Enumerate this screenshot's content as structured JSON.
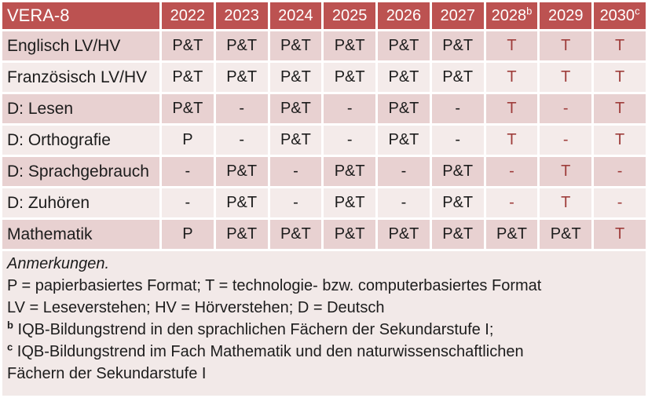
{
  "colors": {
    "header_bg": "#bc5251",
    "band_dark": "#e8d1d1",
    "band_light": "#f4ebea",
    "notes_bg": "#f2e9e8",
    "red_value_text": "#9e3d3b",
    "body_text": "#1c1c1c",
    "header_text": "#ffffff",
    "grid_gap": "#ffffff"
  },
  "table": {
    "title": "VERA-8",
    "columns": [
      {
        "label": "2022",
        "sup": ""
      },
      {
        "label": "2023",
        "sup": ""
      },
      {
        "label": "2024",
        "sup": ""
      },
      {
        "label": "2025",
        "sup": ""
      },
      {
        "label": "2026",
        "sup": ""
      },
      {
        "label": "2027",
        "sup": ""
      },
      {
        "label": "2028",
        "sup": "b"
      },
      {
        "label": "2029",
        "sup": ""
      },
      {
        "label": "2030",
        "sup": "c"
      }
    ],
    "rows": [
      {
        "label": "Englisch LV/HV",
        "cells": [
          "P&T",
          "P&T",
          "P&T",
          "P&T",
          "P&T",
          "P&T",
          "T",
          "T",
          "T"
        ],
        "red": [
          0,
          0,
          0,
          0,
          0,
          0,
          1,
          1,
          1
        ]
      },
      {
        "label": "Französisch LV/HV",
        "cells": [
          "P&T",
          "P&T",
          "P&T",
          "P&T",
          "P&T",
          "P&T",
          "T",
          "T",
          "T"
        ],
        "red": [
          0,
          0,
          0,
          0,
          0,
          0,
          1,
          1,
          1
        ]
      },
      {
        "label": "D: Lesen",
        "cells": [
          "P&T",
          "-",
          "P&T",
          "-",
          "P&T",
          "-",
          "T",
          "-",
          "T"
        ],
        "red": [
          0,
          0,
          0,
          0,
          0,
          0,
          1,
          1,
          1
        ]
      },
      {
        "label": "D: Orthografie",
        "cells": [
          "P",
          "-",
          "P&T",
          "-",
          "P&T",
          "-",
          "T",
          "-",
          "T"
        ],
        "red": [
          0,
          0,
          0,
          0,
          0,
          0,
          1,
          1,
          1
        ]
      },
      {
        "label": "D: Sprachgebrauch",
        "cells": [
          "-",
          "P&T",
          "-",
          "P&T",
          "-",
          "P&T",
          "-",
          "T",
          "-"
        ],
        "red": [
          0,
          0,
          0,
          0,
          0,
          0,
          1,
          1,
          1
        ]
      },
      {
        "label": "D: Zuhören",
        "cells": [
          "-",
          "P&T",
          "-",
          "P&T",
          "-",
          "P&T",
          "-",
          "T",
          "-"
        ],
        "red": [
          0,
          0,
          0,
          0,
          0,
          0,
          1,
          1,
          1
        ]
      },
      {
        "label": "Mathematik",
        "cells": [
          "P",
          "P&T",
          "P&T",
          "P&T",
          "P&T",
          "P&T",
          "P&T",
          "P&T",
          "T"
        ],
        "red": [
          0,
          0,
          0,
          0,
          0,
          0,
          0,
          0,
          1
        ]
      }
    ]
  },
  "notes": {
    "heading": "Anmerkungen.",
    "lines": [
      {
        "sup": "",
        "text": "P = papierbasiertes Format; T = technologie- bzw. computerbasiertes Format"
      },
      {
        "sup": "",
        "text": "LV = Leseverstehen; HV = Hörverstehen; D = Deutsch"
      },
      {
        "sup": "b",
        "text": "IQB-Bildungstrend in den sprachlichen Fächern der Sekundarstufe I;"
      },
      {
        "sup": "c",
        "text": "IQB-Bildungstrend im Fach Mathematik und den naturwissenschaftlichen"
      },
      {
        "sup": "",
        "text": "Fächern der Sekundarstufe I"
      }
    ]
  }
}
